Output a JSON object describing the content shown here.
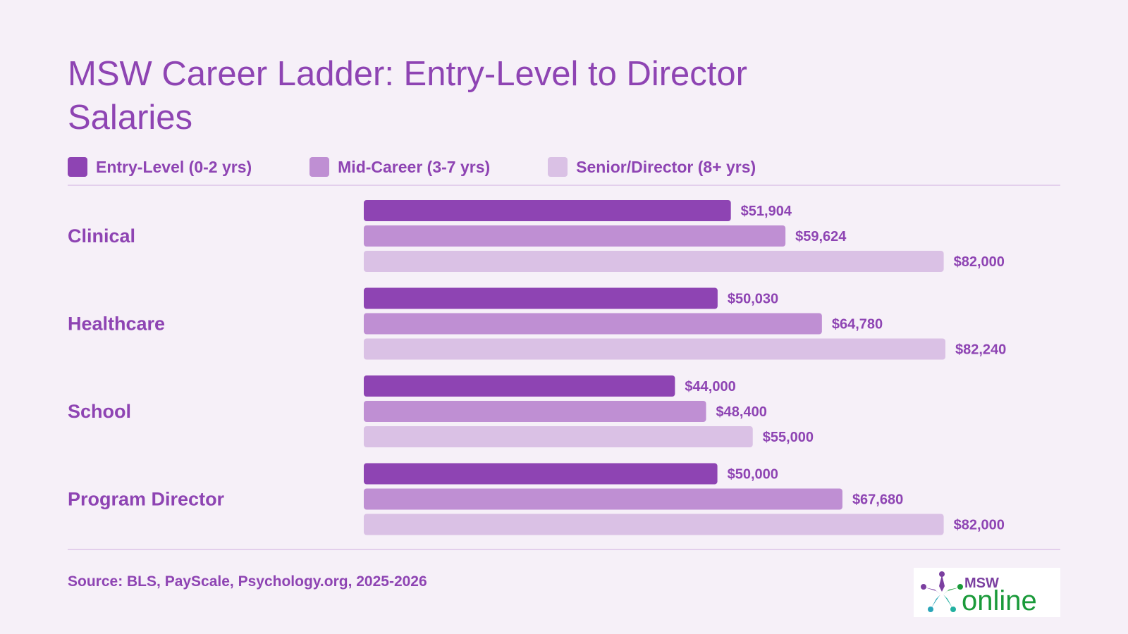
{
  "title": "MSW Career Ladder: Entry-Level to Director Salaries",
  "legend": [
    {
      "label": "Entry-Level (0-2 yrs)",
      "color": "#8e44b3"
    },
    {
      "label": "Mid-Career (3-7 yrs)",
      "color": "#bf8fd3"
    },
    {
      "label": "Senior/Director (8+ yrs)",
      "color": "#dac1e5"
    }
  ],
  "source": "Source: BLS, PayScale, Psychology.org, 2025-2026",
  "logo": {
    "top_text": "MSW",
    "bottom_text": "online"
  },
  "chart_data": {
    "type": "bar",
    "orientation": "horizontal",
    "categories": [
      "Clinical",
      "Healthcare",
      "School",
      "Program Director"
    ],
    "series": [
      {
        "name": "Entry-Level (0-2 yrs)",
        "values": [
          51904,
          50030,
          44000,
          50000
        ],
        "labels": [
          "$51,904",
          "$50,030",
          "$44,000",
          "$50,000"
        ],
        "color": "#8e44b3"
      },
      {
        "name": "Mid-Career (3-7 yrs)",
        "values": [
          59624,
          64780,
          48400,
          67680
        ],
        "labels": [
          "$59,624",
          "$64,780",
          "$48,400",
          "$67,680"
        ],
        "color": "#bf8fd3"
      },
      {
        "name": "Senior/Director (8+ yrs)",
        "values": [
          82000,
          82240,
          55000,
          82000
        ],
        "labels": [
          "$82,000",
          "$82,240",
          "$55,000",
          "$82,000"
        ],
        "color": "#dac1e5"
      }
    ],
    "xlim": [
      0,
      82240
    ],
    "grid": false,
    "legend_position": "top-left"
  }
}
